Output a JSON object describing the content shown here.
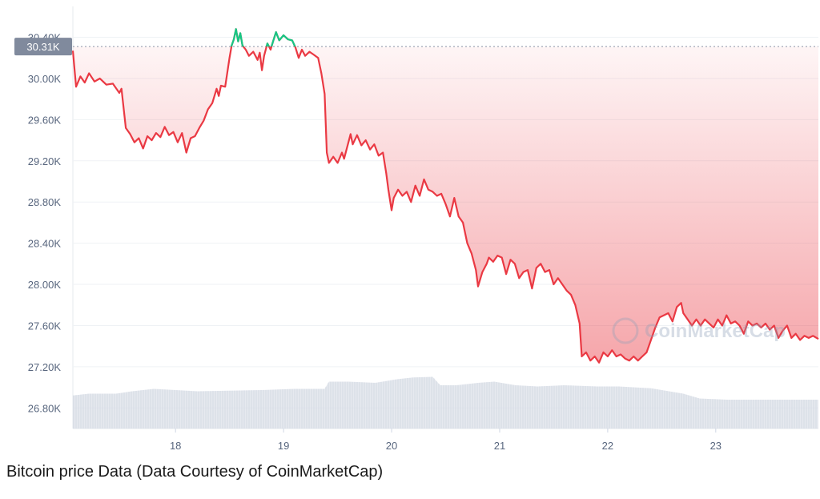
{
  "caption": "Bitcoin price Data (Data Courtesy of CoinMarketCap)",
  "watermark_text": "CoinMarketCap",
  "colors": {
    "down": "#ea3943",
    "up": "#16c784",
    "volume": "#dde1ea",
    "grid": "#eff2f5",
    "badge": "#808a9d"
  },
  "chart_data": {
    "type": "line",
    "x_unit": "day",
    "xlim": [
      17.05,
      23.95
    ],
    "ylim": [
      26.6,
      30.7
    ],
    "y_ticks": [
      {
        "value": 30.4,
        "label": "30.40K"
      },
      {
        "value": 30.0,
        "label": "30.00K"
      },
      {
        "value": 29.6,
        "label": "29.60K"
      },
      {
        "value": 29.2,
        "label": "29.20K"
      },
      {
        "value": 28.8,
        "label": "28.80K"
      },
      {
        "value": 28.4,
        "label": "28.40K"
      },
      {
        "value": 28.0,
        "label": "28.00K"
      },
      {
        "value": 27.6,
        "label": "27.60K"
      },
      {
        "value": 27.2,
        "label": "27.20K"
      },
      {
        "value": 26.8,
        "label": "26.80K"
      }
    ],
    "x_ticks": [
      {
        "value": 18,
        "label": "18"
      },
      {
        "value": 19,
        "label": "19"
      },
      {
        "value": 20,
        "label": "20"
      },
      {
        "value": 21,
        "label": "21"
      },
      {
        "value": 22,
        "label": "22"
      },
      {
        "value": 23,
        "label": "23"
      }
    ],
    "reference_price": {
      "value": 30.31,
      "label": "30.31K"
    },
    "series": [
      {
        "values_in": "K USD",
        "points": [
          [
            17.05,
            30.27
          ],
          [
            17.08,
            29.92
          ],
          [
            17.12,
            30.02
          ],
          [
            17.16,
            29.96
          ],
          [
            17.2,
            30.05
          ],
          [
            17.25,
            29.97
          ],
          [
            17.3,
            30.0
          ],
          [
            17.36,
            29.94
          ],
          [
            17.42,
            29.95
          ],
          [
            17.48,
            29.86
          ],
          [
            17.5,
            29.9
          ],
          [
            17.54,
            29.52
          ],
          [
            17.58,
            29.46
          ],
          [
            17.62,
            29.38
          ],
          [
            17.66,
            29.42
          ],
          [
            17.7,
            29.32
          ],
          [
            17.74,
            29.44
          ],
          [
            17.78,
            29.4
          ],
          [
            17.82,
            29.47
          ],
          [
            17.86,
            29.43
          ],
          [
            17.9,
            29.53
          ],
          [
            17.94,
            29.45
          ],
          [
            17.98,
            29.48
          ],
          [
            18.02,
            29.38
          ],
          [
            18.06,
            29.47
          ],
          [
            18.1,
            29.28
          ],
          [
            18.14,
            29.42
          ],
          [
            18.18,
            29.44
          ],
          [
            18.22,
            29.52
          ],
          [
            18.26,
            29.59
          ],
          [
            18.3,
            29.7
          ],
          [
            18.34,
            29.76
          ],
          [
            18.38,
            29.9
          ],
          [
            18.4,
            29.83
          ],
          [
            18.42,
            29.93
          ],
          [
            18.46,
            29.92
          ],
          [
            18.5,
            30.2
          ],
          [
            18.52,
            30.32
          ],
          [
            18.54,
            30.38
          ],
          [
            18.56,
            30.48
          ],
          [
            18.58,
            30.36
          ],
          [
            18.6,
            30.44
          ],
          [
            18.62,
            30.32
          ],
          [
            18.65,
            30.28
          ],
          [
            18.68,
            30.22
          ],
          [
            18.72,
            30.26
          ],
          [
            18.76,
            30.18
          ],
          [
            18.78,
            30.25
          ],
          [
            18.8,
            30.08
          ],
          [
            18.82,
            30.22
          ],
          [
            18.85,
            30.34
          ],
          [
            18.88,
            30.28
          ],
          [
            18.9,
            30.35
          ],
          [
            18.93,
            30.45
          ],
          [
            18.96,
            30.37
          ],
          [
            19.0,
            30.42
          ],
          [
            19.04,
            30.38
          ],
          [
            19.08,
            30.37
          ],
          [
            19.11,
            30.3
          ],
          [
            19.14,
            30.2
          ],
          [
            19.17,
            30.28
          ],
          [
            19.2,
            30.22
          ],
          [
            19.24,
            30.26
          ],
          [
            19.28,
            30.23
          ],
          [
            19.32,
            30.2
          ],
          [
            19.35,
            30.05
          ],
          [
            19.38,
            29.85
          ],
          [
            19.4,
            29.28
          ],
          [
            19.42,
            29.18
          ],
          [
            19.46,
            29.24
          ],
          [
            19.5,
            29.18
          ],
          [
            19.54,
            29.28
          ],
          [
            19.56,
            29.22
          ],
          [
            19.6,
            29.38
          ],
          [
            19.62,
            29.46
          ],
          [
            19.64,
            29.36
          ],
          [
            19.68,
            29.45
          ],
          [
            19.72,
            29.35
          ],
          [
            19.76,
            29.4
          ],
          [
            19.8,
            29.31
          ],
          [
            19.84,
            29.36
          ],
          [
            19.88,
            29.25
          ],
          [
            19.92,
            29.28
          ],
          [
            19.95,
            29.08
          ],
          [
            19.97,
            28.92
          ],
          [
            20.0,
            28.72
          ],
          [
            20.02,
            28.84
          ],
          [
            20.06,
            28.92
          ],
          [
            20.1,
            28.86
          ],
          [
            20.14,
            28.9
          ],
          [
            20.18,
            28.8
          ],
          [
            20.22,
            28.96
          ],
          [
            20.26,
            28.86
          ],
          [
            20.3,
            29.02
          ],
          [
            20.34,
            28.92
          ],
          [
            20.38,
            28.9
          ],
          [
            20.42,
            28.86
          ],
          [
            20.46,
            28.88
          ],
          [
            20.5,
            28.78
          ],
          [
            20.54,
            28.66
          ],
          [
            20.58,
            28.84
          ],
          [
            20.62,
            28.66
          ],
          [
            20.66,
            28.6
          ],
          [
            20.7,
            28.4
          ],
          [
            20.74,
            28.3
          ],
          [
            20.78,
            28.14
          ],
          [
            20.8,
            27.98
          ],
          [
            20.84,
            28.12
          ],
          [
            20.88,
            28.2
          ],
          [
            20.9,
            28.26
          ],
          [
            20.94,
            28.22
          ],
          [
            20.98,
            28.28
          ],
          [
            21.02,
            28.26
          ],
          [
            21.06,
            28.1
          ],
          [
            21.1,
            28.24
          ],
          [
            21.14,
            28.2
          ],
          [
            21.18,
            28.06
          ],
          [
            21.22,
            28.12
          ],
          [
            21.26,
            28.14
          ],
          [
            21.3,
            27.96
          ],
          [
            21.34,
            28.16
          ],
          [
            21.38,
            28.2
          ],
          [
            21.42,
            28.12
          ],
          [
            21.46,
            28.14
          ],
          [
            21.5,
            28.0
          ],
          [
            21.54,
            28.06
          ],
          [
            21.58,
            28.0
          ],
          [
            21.62,
            27.94
          ],
          [
            21.66,
            27.9
          ],
          [
            21.7,
            27.8
          ],
          [
            21.74,
            27.62
          ],
          [
            21.76,
            27.3
          ],
          [
            21.8,
            27.34
          ],
          [
            21.84,
            27.26
          ],
          [
            21.88,
            27.3
          ],
          [
            21.92,
            27.24
          ],
          [
            21.96,
            27.34
          ],
          [
            22.0,
            27.3
          ],
          [
            22.04,
            27.36
          ],
          [
            22.08,
            27.3
          ],
          [
            22.12,
            27.32
          ],
          [
            22.16,
            27.28
          ],
          [
            22.2,
            27.26
          ],
          [
            22.24,
            27.3
          ],
          [
            22.28,
            27.26
          ],
          [
            22.32,
            27.3
          ],
          [
            22.36,
            27.34
          ],
          [
            22.4,
            27.46
          ],
          [
            22.44,
            27.58
          ],
          [
            22.48,
            27.68
          ],
          [
            22.52,
            27.7
          ],
          [
            22.56,
            27.72
          ],
          [
            22.6,
            27.64
          ],
          [
            22.64,
            27.78
          ],
          [
            22.68,
            27.82
          ],
          [
            22.7,
            27.72
          ],
          [
            22.74,
            27.66
          ],
          [
            22.78,
            27.6
          ],
          [
            22.82,
            27.66
          ],
          [
            22.86,
            27.6
          ],
          [
            22.9,
            27.66
          ],
          [
            22.94,
            27.62
          ],
          [
            22.98,
            27.58
          ],
          [
            23.02,
            27.66
          ],
          [
            23.06,
            27.6
          ],
          [
            23.1,
            27.7
          ],
          [
            23.14,
            27.62
          ],
          [
            23.18,
            27.64
          ],
          [
            23.22,
            27.6
          ],
          [
            23.26,
            27.52
          ],
          [
            23.3,
            27.64
          ],
          [
            23.34,
            27.6
          ],
          [
            23.38,
            27.62
          ],
          [
            23.42,
            27.58
          ],
          [
            23.46,
            27.62
          ],
          [
            23.5,
            27.56
          ],
          [
            23.54,
            27.6
          ],
          [
            23.58,
            27.48
          ],
          [
            23.62,
            27.55
          ],
          [
            23.66,
            27.6
          ],
          [
            23.7,
            27.48
          ],
          [
            23.74,
            27.52
          ],
          [
            23.78,
            27.46
          ],
          [
            23.82,
            27.5
          ],
          [
            23.86,
            27.48
          ],
          [
            23.9,
            27.5
          ],
          [
            23.95,
            27.47
          ]
        ]
      }
    ],
    "volume_profile": [
      [
        17.05,
        0.55
      ],
      [
        17.2,
        0.58
      ],
      [
        17.45,
        0.58
      ],
      [
        17.6,
        0.62
      ],
      [
        17.8,
        0.66
      ],
      [
        18.0,
        0.64
      ],
      [
        18.2,
        0.62
      ],
      [
        18.5,
        0.63
      ],
      [
        18.8,
        0.64
      ],
      [
        19.1,
        0.66
      ],
      [
        19.38,
        0.66
      ],
      [
        19.42,
        0.78
      ],
      [
        19.6,
        0.78
      ],
      [
        19.85,
        0.76
      ],
      [
        20.05,
        0.82
      ],
      [
        20.2,
        0.85
      ],
      [
        20.38,
        0.86
      ],
      [
        20.45,
        0.72
      ],
      [
        20.6,
        0.72
      ],
      [
        20.8,
        0.76
      ],
      [
        20.95,
        0.78
      ],
      [
        21.15,
        0.72
      ],
      [
        21.35,
        0.7
      ],
      [
        21.6,
        0.72
      ],
      [
        21.9,
        0.7
      ],
      [
        22.1,
        0.7
      ],
      [
        22.4,
        0.67
      ],
      [
        22.7,
        0.58
      ],
      [
        22.85,
        0.5
      ],
      [
        23.1,
        0.48
      ],
      [
        23.5,
        0.48
      ],
      [
        23.95,
        0.48
      ]
    ]
  }
}
